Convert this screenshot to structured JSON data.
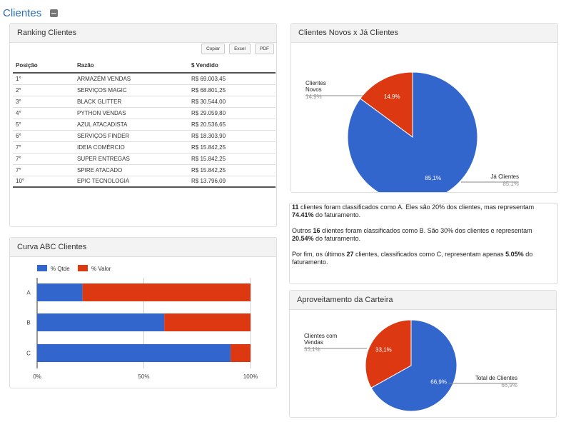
{
  "page": {
    "title": "Clientes"
  },
  "ranking": {
    "title": "Ranking Clientes",
    "buttons": [
      "Copiar",
      "Excel",
      "PDF"
    ],
    "columns": [
      "Posição",
      "Razão",
      "$ Vendido"
    ],
    "rows": [
      [
        "1°",
        "ARMAZÉM VENDAS",
        "R$ 69.003,45"
      ],
      [
        "2°",
        "SERVIÇOS MAGIC",
        "R$ 68.801,25"
      ],
      [
        "3°",
        "BLACK GLITTER",
        "R$ 30.544,00"
      ],
      [
        "4°",
        "PYTHON VENDAS",
        "R$ 29.059,80"
      ],
      [
        "5°",
        "AZUL ATACADISTA",
        "R$ 20.536,65"
      ],
      [
        "6°",
        "SERVIÇOS FINDER",
        "R$ 18.303,90"
      ],
      [
        "7°",
        "IDEIA COMÉRCIO",
        "R$ 15.842,25"
      ],
      [
        "7°",
        "SUPER ENTREGAS",
        "R$ 15.842,25"
      ],
      [
        "7°",
        "SPIRE ATACADO",
        "R$ 15.842,25"
      ],
      [
        "10°",
        "EPIC TECNOLOGIA",
        "R$ 13.796,09"
      ]
    ]
  },
  "abc": {
    "title": "Curva ABC Clientes",
    "chart_data": {
      "type": "bar",
      "stacked": true,
      "orientation": "horizontal",
      "categories": [
        "A",
        "B",
        "C"
      ],
      "series": [
        {
          "name": "% Qtde",
          "color": "#3366cc",
          "values": [
            21.28,
            59.57,
            90.66
          ]
        },
        {
          "name": "% Valor",
          "color": "#dc3912",
          "values": [
            78.72,
            40.43,
            9.34
          ]
        }
      ],
      "xticks": [
        "0%",
        "50%",
        "100%"
      ],
      "xlim": [
        0,
        100
      ],
      "legend": "top-left"
    }
  },
  "pie1": {
    "title": "Clientes Novos x Já Clientes",
    "chart_data": {
      "type": "pie",
      "slices": [
        {
          "label": "Clientes Novos",
          "value": 14.9,
          "display": "14,9%",
          "color": "#dc3912"
        },
        {
          "label": "Já Clientes",
          "value": 85.1,
          "display": "85,1%",
          "color": "#3366cc"
        }
      ]
    }
  },
  "summary": {
    "p1": {
      "a": "11",
      "b": " clientes foram classificados como A. Eles são 20% dos clientes, mas representam ",
      "c": "74.41%",
      "d": " do faturamento."
    },
    "p2": {
      "a": "Outros ",
      "b": "16",
      "c": " clientes foram classificados como B. São 30% dos clientes e representam ",
      "d": "20.54%",
      "e": " do faturamento."
    },
    "p3": {
      "a": "Por fim, os últimos ",
      "b": "27",
      "c": " clientes, classificados como C, representam apenas ",
      "d": "5.05%",
      "e": " do faturamento."
    }
  },
  "pie2": {
    "title": "Aproveitamento da Carteira",
    "chart_data": {
      "type": "pie",
      "slices": [
        {
          "label": "Clientes com Vendas",
          "value": 33.1,
          "display": "33,1%",
          "color": "#dc3912"
        },
        {
          "label": "Total de Clientes",
          "value": 66.9,
          "display": "66,9%",
          "color": "#3366cc"
        }
      ]
    }
  }
}
